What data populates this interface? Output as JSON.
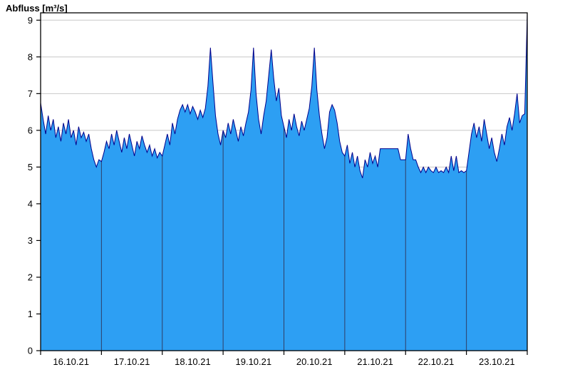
{
  "chart_data": {
    "type": "area",
    "title": "Abfluss [m³/s]",
    "ylabel": "Abfluss [m³/s]",
    "xlabel": "",
    "legend": "none",
    "grid": true,
    "ylim": [
      0,
      9.2
    ],
    "yticks": [
      0,
      1,
      2,
      3,
      4,
      5,
      6,
      7,
      8,
      9
    ],
    "x_categories": [
      "16.10.21",
      "17.10.21",
      "18.10.21",
      "19.10.21",
      "20.10.21",
      "21.10.21",
      "22.10.21",
      "23.10.21"
    ],
    "points_per_day": 24,
    "colors": {
      "fill": "#2D9FF3",
      "line": "#00008B",
      "h_grid": "#C8C8C8",
      "v_grid": "#2F3E66",
      "axis": "#000000",
      "background": "#FFFFFF"
    },
    "values": [
      6.75,
      6.3,
      5.9,
      6.4,
      6.0,
      6.3,
      5.8,
      6.1,
      5.7,
      6.2,
      5.9,
      6.3,
      5.8,
      6.0,
      5.6,
      6.1,
      5.8,
      5.95,
      5.7,
      5.9,
      5.5,
      5.2,
      5.0,
      5.2,
      5.15,
      5.4,
      5.7,
      5.5,
      5.9,
      5.6,
      6.0,
      5.7,
      5.4,
      5.8,
      5.5,
      5.9,
      5.6,
      5.3,
      5.7,
      5.5,
      5.85,
      5.6,
      5.4,
      5.6,
      5.3,
      5.5,
      5.25,
      5.4,
      5.3,
      5.6,
      5.9,
      5.6,
      6.2,
      5.9,
      6.3,
      6.55,
      6.7,
      6.5,
      6.7,
      6.45,
      6.65,
      6.5,
      6.3,
      6.55,
      6.35,
      6.6,
      7.2,
      8.25,
      7.3,
      6.4,
      5.9,
      5.6,
      6.0,
      5.8,
      6.2,
      5.9,
      6.3,
      6.0,
      5.7,
      6.1,
      5.85,
      6.2,
      6.5,
      7.1,
      8.25,
      7.0,
      6.3,
      5.9,
      6.4,
      6.8,
      7.5,
      8.2,
      7.4,
      6.8,
      7.15,
      6.4,
      6.1,
      5.8,
      6.3,
      6.0,
      6.45,
      6.1,
      5.85,
      6.25,
      6.0,
      6.3,
      6.6,
      7.2,
      8.25,
      7.1,
      6.4,
      5.9,
      5.5,
      5.8,
      6.5,
      6.7,
      6.55,
      6.2,
      5.7,
      5.4,
      5.3,
      5.6,
      5.1,
      5.4,
      5.0,
      5.3,
      4.9,
      4.7,
      5.2,
      5.0,
      5.4,
      5.1,
      5.3,
      5.0,
      5.5,
      5.5,
      5.5,
      5.5,
      5.5,
      5.5,
      5.5,
      5.5,
      5.2,
      5.2,
      5.2,
      5.9,
      5.5,
      5.2,
      5.2,
      5.0,
      4.85,
      5.0,
      4.85,
      5.0,
      4.9,
      4.85,
      5.0,
      4.85,
      4.9,
      4.85,
      5.0,
      4.85,
      5.3,
      4.9,
      5.3,
      4.85,
      4.9,
      4.85,
      4.9,
      5.4,
      5.9,
      6.2,
      5.8,
      6.1,
      5.7,
      6.3,
      5.9,
      5.5,
      5.8,
      5.4,
      5.15,
      5.5,
      5.9,
      5.6,
      6.1,
      6.35,
      6.0,
      6.45,
      7.0,
      6.2,
      6.4,
      6.45,
      9.15
    ]
  }
}
